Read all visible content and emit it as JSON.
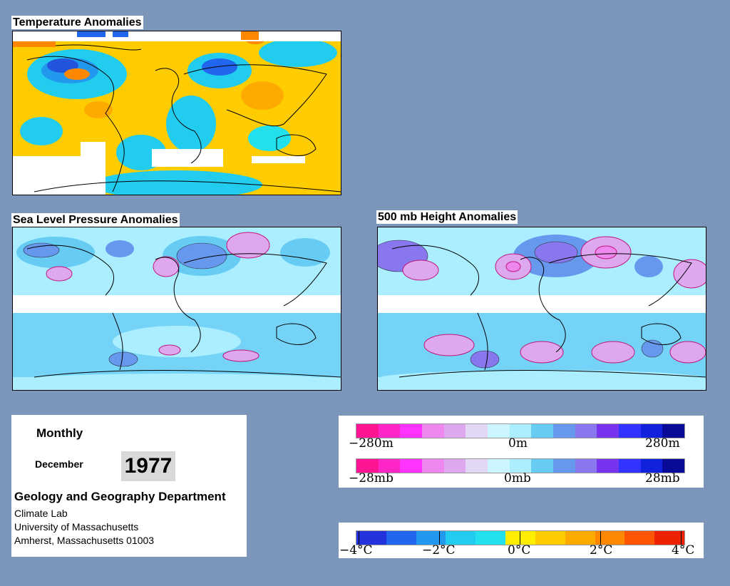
{
  "panels": {
    "temperature": {
      "title": "Temperature Anomalies"
    },
    "slp": {
      "title": "Sea Level Pressure Anomalies"
    },
    "height500": {
      "title": "500 mb Height Anomalies"
    }
  },
  "info": {
    "period": "Monthly",
    "month": "December",
    "year": "1977",
    "department": "Geology and Geography Department",
    "lab": "Climate Lab",
    "university": "University of Massachusetts",
    "address": "Amherst, Massachusetts 01003"
  },
  "legends": {
    "height": {
      "min": "−280m",
      "mid": "0m",
      "max": "280m"
    },
    "pressure": {
      "min": "−28mb",
      "mid": "0mb",
      "max": "28mb"
    },
    "temperature": {
      "labels": [
        "−4°C",
        "−2°C",
        "0°C",
        "2°C",
        "4°C"
      ]
    }
  },
  "colors": {
    "background": "#7b95bb",
    "anomaly_scale": [
      "#ff1493",
      "#ff26c8",
      "#ff33ff",
      "#ee88ee",
      "#dda8ee",
      "#e2d8f5",
      "#ccf6ff",
      "#aaeeff",
      "#66ccf4",
      "#6699ee",
      "#8877ee",
      "#7733ee",
      "#3333ff",
      "#1122dd",
      "#0a0a99"
    ],
    "temperature_scale": [
      "#2233dd",
      "#2266ee",
      "#2299ee",
      "#22ccee",
      "#22e0ee",
      "#ffee00",
      "#ffcc00",
      "#ffaa00",
      "#ff8800",
      "#ff5500",
      "#ee2200"
    ]
  }
}
